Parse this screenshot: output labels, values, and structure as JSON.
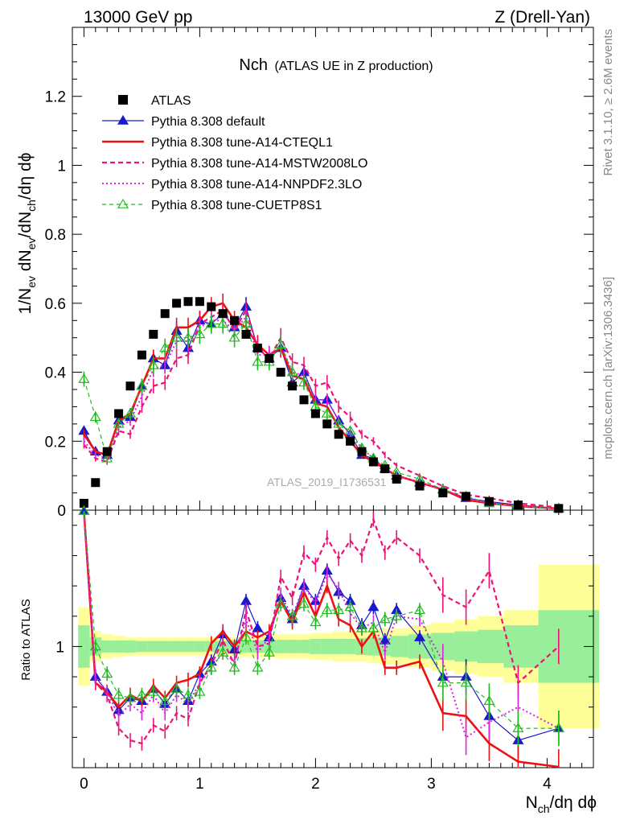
{
  "header": {
    "left": "13000 GeV pp",
    "right": "Z (Drell-Yan)"
  },
  "side_labels": {
    "top": "Rivet 3.1.10, ≥ 2.6M events",
    "bottom": "mcplots.cern.ch [arXiv:1306.3436]"
  },
  "plot": {
    "title_main": "Nch",
    "title_sub": "(ATLAS UE in Z production)",
    "watermark": "ATLAS_2019_I1736531",
    "ylabel_main": "1/N",
    "ylabel_sub1": "ev",
    "ylabel_mid": " dN",
    "ylabel_sub2": "ev",
    "ylabel_mid2": "/dN",
    "ylabel_sub3": "ch",
    "ylabel_end": "/dη dϕ",
    "ratio_ylabel": "Ratio to ATLAS",
    "xlabel_main": "N",
    "xlabel_sub": "ch",
    "xlabel_end": "/dη dϕ"
  },
  "legend": [
    {
      "label": "ATLAS",
      "color": "#000000",
      "style": "square"
    },
    {
      "label": "Pythia 8.308 default",
      "color": "#1a1acc",
      "style": "line-triangle"
    },
    {
      "label": "Pythia 8.308 tune-A14-CTEQL1",
      "color": "#ee1111",
      "style": "thick-line"
    },
    {
      "label": "Pythia 8.308 tune-A14-MSTW2008LO",
      "color": "#ee1177",
      "style": "dashed"
    },
    {
      "label": "Pythia 8.308 tune-A14-NNPDF2.3LO",
      "color": "#dd22dd",
      "style": "dotted"
    },
    {
      "label": "Pythia 8.308 tune-CUETP8S1",
      "color": "#22bb22",
      "style": "dashed-open-triangle"
    }
  ],
  "chart_data": {
    "type": "line",
    "x_ticks_main": [
      "0",
      "1",
      "2",
      "3",
      "4"
    ],
    "y_ticks_main": [
      "0",
      "0.2",
      "0.4",
      "0.6",
      "0.8",
      "1",
      "1.2"
    ],
    "y_ticks_ratio": [
      "1"
    ],
    "xlim": [
      -0.1,
      4.4
    ],
    "ylim": [
      0,
      1.4
    ],
    "ratio_ylim": [
      0.6,
      1.45
    ],
    "x": [
      0.0,
      0.1,
      0.2,
      0.3,
      0.4,
      0.5,
      0.6,
      0.7,
      0.8,
      0.9,
      1.0,
      1.1,
      1.2,
      1.3,
      1.4,
      1.5,
      1.6,
      1.7,
      1.8,
      1.9,
      2.0,
      2.1,
      2.2,
      2.3,
      2.4,
      2.5,
      2.6,
      2.7,
      2.9,
      3.1,
      3.3,
      3.5,
      3.75,
      4.1
    ],
    "series": [
      {
        "name": "ATLAS",
        "values": [
          0.02,
          0.08,
          0.17,
          0.28,
          0.36,
          0.45,
          0.51,
          0.57,
          0.6,
          0.605,
          0.605,
          0.59,
          0.57,
          0.55,
          0.51,
          0.47,
          0.44,
          0.4,
          0.36,
          0.32,
          0.28,
          0.25,
          0.22,
          0.2,
          0.17,
          0.14,
          0.12,
          0.09,
          0.07,
          0.05,
          0.04,
          0.025,
          0.015,
          0.005
        ]
      },
      {
        "name": "Pythia 8.308 default",
        "values": [
          0.23,
          0.17,
          0.16,
          0.26,
          0.27,
          0.36,
          0.44,
          0.42,
          0.52,
          0.47,
          0.55,
          0.54,
          0.57,
          0.53,
          0.59,
          0.47,
          0.44,
          0.47,
          0.37,
          0.4,
          0.32,
          0.32,
          0.26,
          0.22,
          0.16,
          0.15,
          0.12,
          0.1,
          0.08,
          0.06,
          0.035,
          0.025,
          0.015,
          0.005
        ]
      },
      {
        "name": "Pythia 8.308 tune-A14-CTEQL1",
        "values": [
          0.22,
          0.17,
          0.16,
          0.26,
          0.28,
          0.36,
          0.44,
          0.44,
          0.53,
          0.53,
          0.55,
          0.59,
          0.6,
          0.55,
          0.53,
          0.48,
          0.45,
          0.47,
          0.39,
          0.38,
          0.31,
          0.3,
          0.24,
          0.2,
          0.16,
          0.14,
          0.12,
          0.1,
          0.08,
          0.06,
          0.03,
          0.02,
          0.012,
          0.005
        ]
      },
      {
        "name": "Pythia 8.308 tune-A14-MSTW2008LO",
        "values": [
          0.19,
          0.15,
          0.14,
          0.23,
          0.22,
          0.3,
          0.36,
          0.37,
          0.44,
          0.45,
          0.54,
          0.56,
          0.58,
          0.52,
          0.58,
          0.47,
          0.44,
          0.5,
          0.43,
          0.42,
          0.36,
          0.37,
          0.3,
          0.27,
          0.22,
          0.2,
          0.16,
          0.13,
          0.1,
          0.07,
          0.045,
          0.035,
          0.02,
          0.008
        ]
      },
      {
        "name": "Pythia 8.308 tune-A14-NNPDF2.3LO",
        "values": [
          0.2,
          0.16,
          0.15,
          0.24,
          0.26,
          0.33,
          0.41,
          0.42,
          0.49,
          0.49,
          0.53,
          0.55,
          0.55,
          0.52,
          0.56,
          0.45,
          0.45,
          0.48,
          0.4,
          0.39,
          0.32,
          0.32,
          0.26,
          0.22,
          0.18,
          0.15,
          0.12,
          0.1,
          0.08,
          0.06,
          0.035,
          0.02,
          0.012,
          0.005
        ]
      },
      {
        "name": "Pythia 8.308 tune-CUETP8S1",
        "values": [
          0.38,
          0.27,
          0.15,
          0.25,
          0.28,
          0.36,
          0.42,
          0.47,
          0.5,
          0.5,
          0.51,
          0.54,
          0.54,
          0.5,
          0.54,
          0.43,
          0.43,
          0.48,
          0.4,
          0.37,
          0.3,
          0.28,
          0.25,
          0.23,
          0.18,
          0.15,
          0.13,
          0.11,
          0.09,
          0.06,
          0.04,
          0.02,
          0.012,
          0.005
        ]
      }
    ],
    "ratio_series": [
      {
        "name": "Pythia 8.308 default",
        "values": [
          1.45,
          0.9,
          0.85,
          0.79,
          0.83,
          0.82,
          0.86,
          0.81,
          0.86,
          0.82,
          0.91,
          0.95,
          1.04,
          0.99,
          1.15,
          1.06,
          1.03,
          1.16,
          1.09,
          1.2,
          1.15,
          1.25,
          1.18,
          1.15,
          1.07,
          1.13,
          1.02,
          1.12,
          1.03,
          0.9,
          0.9,
          0.77,
          0.69,
          0.73
        ]
      },
      {
        "name": "Pythia 8.308 tune-A14-CTEQL1",
        "values": [
          1.45,
          0.88,
          0.85,
          0.8,
          0.84,
          0.82,
          0.87,
          0.83,
          0.88,
          0.89,
          0.91,
          1.01,
          1.05,
          1.0,
          1.05,
          1.03,
          1.05,
          1.15,
          1.08,
          1.18,
          1.1,
          1.2,
          1.09,
          1.07,
          1.0,
          1.05,
          0.93,
          0.93,
          0.95,
          0.78,
          0.77,
          0.68,
          0.62,
          0.54
        ]
      },
      {
        "name": "Pythia 8.308 tune-A14-MSTW2008LO",
        "values": [
          1.45,
          0.88,
          0.84,
          0.73,
          0.69,
          0.68,
          0.74,
          0.72,
          0.78,
          0.76,
          0.88,
          0.94,
          1.02,
          0.94,
          1.12,
          1.0,
          1.01,
          1.23,
          1.16,
          1.31,
          1.27,
          1.36,
          1.29,
          1.35,
          1.3,
          1.42,
          1.31,
          1.36,
          1.3,
          1.17,
          1.13,
          1.25,
          0.88,
          1.0
        ]
      },
      {
        "name": "Pythia 8.308 tune-A14-NNPDF2.3LO",
        "values": [
          1.45,
          0.9,
          0.85,
          0.77,
          0.81,
          0.78,
          0.84,
          0.78,
          0.84,
          0.81,
          0.88,
          0.93,
          0.98,
          0.95,
          1.09,
          0.98,
          1.03,
          1.17,
          1.1,
          1.2,
          1.14,
          1.24,
          1.19,
          1.11,
          1.06,
          1.08,
          0.98,
          1.1,
          1.09,
          0.95,
          0.7,
          0.75,
          0.8,
          0.73
        ]
      },
      {
        "name": "Pythia 8.308 tune-CUETP8S1",
        "values": [
          1.45,
          1.0,
          0.91,
          0.84,
          0.83,
          0.84,
          0.85,
          0.82,
          0.86,
          0.84,
          0.85,
          0.93,
          0.98,
          0.93,
          1.03,
          0.93,
          0.98,
          1.14,
          1.1,
          1.14,
          1.08,
          1.12,
          1.12,
          1.13,
          1.06,
          1.06,
          1.09,
          1.1,
          1.12,
          0.88,
          0.88,
          0.82,
          0.73,
          0.73
        ]
      }
    ]
  }
}
